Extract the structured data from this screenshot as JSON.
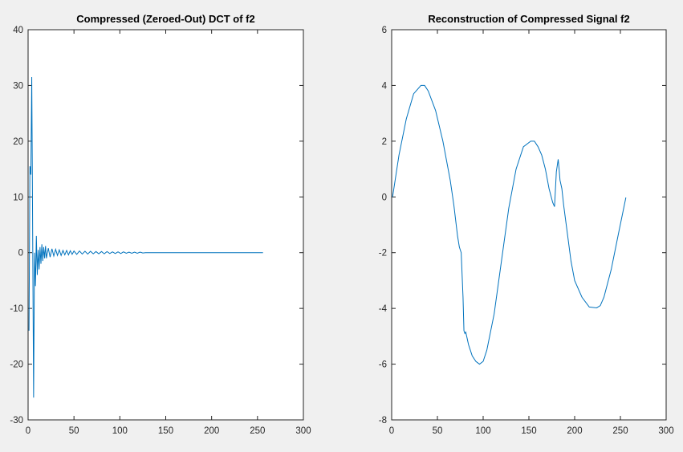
{
  "chart_data": [
    {
      "type": "line",
      "title": "Compressed (Zeroed-Out) DCT of f2",
      "xlabel": "",
      "ylabel": "",
      "xlim": [
        0,
        300
      ],
      "ylim": [
        -30,
        40
      ],
      "xticks": [
        "0",
        "50",
        "100",
        "150",
        "200",
        "250",
        "300"
      ],
      "yticks": [
        "-30",
        "-20",
        "-10",
        "0",
        "10",
        "20",
        "30",
        "40"
      ],
      "grid": false,
      "color": "#0072bd",
      "series": [
        {
          "x": [
            1,
            2,
            3,
            4,
            5,
            6,
            7,
            8,
            9,
            10,
            11,
            12,
            13,
            14,
            15,
            16,
            17,
            18,
            19,
            20,
            22,
            24,
            26,
            28,
            30,
            32,
            34,
            36,
            38,
            40,
            42,
            44,
            46,
            48,
            50,
            53,
            56,
            59,
            62,
            65,
            68,
            71,
            74,
            77,
            80,
            83,
            86,
            89,
            92,
            95,
            98,
            101,
            104,
            107,
            110,
            113,
            116,
            119,
            122,
            125,
            128,
            200,
            256
          ],
          "y": [
            -14,
            15.5,
            14,
            31.5,
            3,
            -26,
            0,
            -6,
            3,
            -4,
            0.5,
            -3,
            1,
            -2,
            1.5,
            -1.5,
            1,
            -1,
            1.2,
            -1,
            0.8,
            -0.8,
            0.7,
            -0.6,
            0.6,
            -0.5,
            0.5,
            -0.5,
            0.4,
            -0.4,
            0.4,
            -0.4,
            0.35,
            -0.3,
            0.3,
            -0.3,
            0.3,
            -0.25,
            0.25,
            -0.25,
            0.25,
            -0.2,
            0.2,
            -0.2,
            0.2,
            -0.2,
            0.2,
            -0.15,
            0.15,
            -0.15,
            0.15,
            -0.15,
            0.15,
            -0.1,
            0.1,
            -0.1,
            0.1,
            -0.1,
            0.1,
            -0.05,
            0,
            0,
            0
          ]
        }
      ]
    },
    {
      "type": "line",
      "title": "Reconstruction of Compressed Signal f2",
      "xlabel": "",
      "ylabel": "",
      "xlim": [
        0,
        300
      ],
      "ylim": [
        -8,
        6
      ],
      "xticks": [
        "0",
        "50",
        "100",
        "150",
        "200",
        "250",
        "300"
      ],
      "yticks": [
        "-8",
        "-6",
        "-4",
        "-2",
        "0",
        "2",
        "4",
        "6"
      ],
      "grid": false,
      "color": "#0072bd",
      "series": [
        {
          "x": [
            1,
            8,
            16,
            24,
            32,
            36,
            40,
            48,
            56,
            64,
            68,
            72,
            74,
            76,
            78,
            79,
            80,
            81,
            82,
            84,
            86,
            88,
            92,
            96,
            100,
            104,
            112,
            120,
            128,
            136,
            144,
            152,
            156,
            160,
            164,
            168,
            172,
            176,
            178,
            180,
            182,
            183,
            184,
            186,
            188,
            192,
            196,
            200,
            208,
            216,
            224,
            228,
            232,
            240,
            248,
            256
          ],
          "y": [
            0,
            1.5,
            2.8,
            3.7,
            4.0,
            4.0,
            3.8,
            3.1,
            2.0,
            0.6,
            -0.3,
            -1.4,
            -1.8,
            -2.0,
            -3.6,
            -4.8,
            -4.9,
            -4.85,
            -5.0,
            -5.3,
            -5.5,
            -5.7,
            -5.9,
            -6.0,
            -5.9,
            -5.5,
            -4.2,
            -2.3,
            -0.4,
            1.0,
            1.8,
            2.0,
            2.0,
            1.8,
            1.5,
            1.0,
            0.3,
            -0.2,
            -0.35,
            0.9,
            1.35,
            1.0,
            0.6,
            0.3,
            -0.3,
            -1.3,
            -2.3,
            -3.0,
            -3.6,
            -3.95,
            -3.98,
            -3.9,
            -3.6,
            -2.6,
            -1.3,
            -0.02
          ]
        }
      ]
    }
  ]
}
